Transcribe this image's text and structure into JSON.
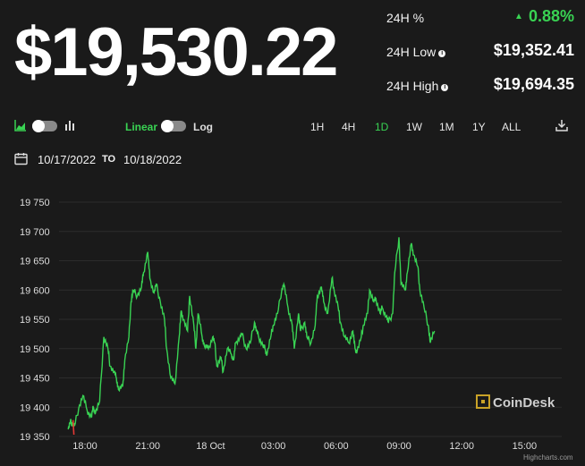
{
  "header": {
    "price": "$19,530.22",
    "stats": [
      {
        "label": "24H %",
        "value": "0.88%",
        "direction": "up",
        "info": false
      },
      {
        "label": "24H Low",
        "value": "$19,352.41",
        "info": true
      },
      {
        "label": "24H High",
        "value": "$19,694.35",
        "info": true
      }
    ]
  },
  "toolbar": {
    "scale_linear": "Linear",
    "scale_log": "Log",
    "ranges": [
      "1H",
      "4H",
      "1D",
      "1W",
      "1M",
      "1Y",
      "ALL"
    ],
    "active_range": "1D",
    "download_icon": "download-icon"
  },
  "date_range": {
    "from": "10/17/2022",
    "to_label": "TO",
    "to": "10/18/2022"
  },
  "watermark": "CoinDesk",
  "credits": "Highcharts.com",
  "colors": {
    "background": "#1a1a1a",
    "accent": "#39d353",
    "down": "#e53935"
  },
  "chart_data": {
    "type": "line",
    "x_labels": [
      "18:00",
      "21:00",
      "18 Oct",
      "03:00",
      "06:00",
      "09:00",
      "12:00",
      "15:00"
    ],
    "y_ticks": [
      "19 750",
      "19 700",
      "19 650",
      "19 600",
      "19 550",
      "19 500",
      "19 450",
      "19 400",
      "19 350"
    ],
    "ylim": [
      19350,
      19750
    ],
    "grid": true,
    "x_hours": [
      -0.8,
      -0.7,
      -0.6,
      -0.5,
      -0.3,
      -0.1,
      0.1,
      0.3,
      0.4,
      0.5,
      0.7,
      0.9,
      1.1,
      1.2,
      1.4,
      1.5,
      1.6,
      1.8,
      1.9,
      2.1,
      2.2,
      2.3,
      2.5,
      2.7,
      2.8,
      3.0,
      3.1,
      3.3,
      3.4,
      3.6,
      3.8,
      3.9,
      4.1,
      4.3,
      4.5,
      4.6,
      4.7,
      4.9,
      5.0,
      5.2,
      5.3,
      5.4,
      5.6,
      5.7,
      5.9,
      6.1,
      6.2,
      6.3,
      6.5,
      6.6,
      6.8,
      7.0,
      7.1,
      7.2,
      7.4,
      7.5,
      7.7,
      7.9,
      8.1,
      8.2,
      8.3,
      8.5,
      8.6,
      8.7,
      8.9,
      9.0,
      9.2,
      9.4,
      9.5,
      9.7,
      9.9,
      10.0,
      10.2,
      10.3,
      10.5,
      10.6,
      10.8,
      11.0,
      11.1,
      11.3,
      11.4,
      11.6,
      11.8,
      11.9,
      12.1,
      12.2,
      12.4,
      12.6,
      12.8,
      12.9,
      13.0,
      13.2,
      13.3,
      13.5,
      13.6,
      13.8,
      13.9,
      14.1,
      14.2,
      14.4,
      14.5,
      14.7,
      14.8,
      15.0,
      15.1,
      15.3,
      15.4,
      15.6,
      15.7,
      15.9,
      16.0,
      16.2,
      16.4,
      16.5,
      16.7
    ],
    "series": [
      {
        "values": [
          19362,
          19375,
          19372,
          19368,
          19398,
          19420,
          19395,
          19383,
          19400,
          19390,
          19410,
          19520,
          19500,
          19470,
          19460,
          19450,
          19430,
          19435,
          19480,
          19520,
          19580,
          19600,
          19590,
          19605,
          19630,
          19665,
          19620,
          19595,
          19610,
          19580,
          19550,
          19500,
          19450,
          19440,
          19520,
          19565,
          19550,
          19530,
          19590,
          19540,
          19500,
          19560,
          19520,
          19505,
          19500,
          19520,
          19510,
          19470,
          19485,
          19460,
          19500,
          19490,
          19480,
          19510,
          19520,
          19525,
          19500,
          19510,
          19545,
          19530,
          19520,
          19505,
          19500,
          19490,
          19525,
          19540,
          19560,
          19600,
          19610,
          19570,
          19540,
          19500,
          19560,
          19530,
          19545,
          19520,
          19510,
          19540,
          19590,
          19605,
          19580,
          19560,
          19620,
          19600,
          19570,
          19545,
          19520,
          19510,
          19530,
          19500,
          19495,
          19520,
          19540,
          19560,
          19600,
          19580,
          19585,
          19560,
          19570,
          19555,
          19545,
          19560,
          19630,
          19690,
          19610,
          19600,
          19630,
          19680,
          19660,
          19640,
          19600,
          19570,
          19540,
          19510,
          19530
        ]
      }
    ],
    "first_tick_down_color": "#e53935"
  }
}
